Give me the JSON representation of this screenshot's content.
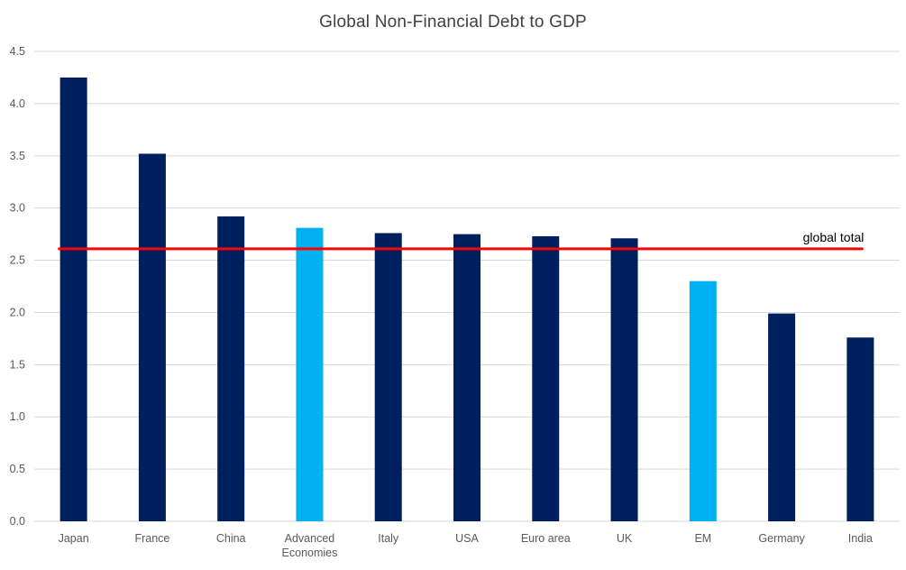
{
  "chart_data": {
    "type": "bar",
    "title": "Global Non-Financial Debt to GDP",
    "xlabel": "",
    "ylabel": "",
    "ylim": [
      0,
      4.5
    ],
    "yticks": [
      "0.0",
      "0.5",
      "1.0",
      "1.5",
      "2.0",
      "2.5",
      "3.0",
      "3.5",
      "4.0",
      "4.5"
    ],
    "grid": true,
    "categories": [
      [
        "Japan"
      ],
      [
        "France"
      ],
      [
        "China"
      ],
      [
        "Advanced",
        "Economies"
      ],
      [
        "Italy"
      ],
      [
        "USA"
      ],
      [
        "Euro area"
      ],
      [
        "UK"
      ],
      [
        "EM"
      ],
      [
        "Germany"
      ],
      [
        "India"
      ]
    ],
    "values": [
      4.25,
      3.52,
      2.92,
      2.81,
      2.76,
      2.75,
      2.73,
      2.71,
      2.3,
      1.99,
      1.76
    ],
    "bar_colors": [
      "#001f5f",
      "#001f5f",
      "#001f5f",
      "#00b0f0",
      "#001f5f",
      "#001f5f",
      "#001f5f",
      "#001f5f",
      "#00b0f0",
      "#001f5f",
      "#001f5f"
    ],
    "reference_line": {
      "label": "global total",
      "value": 2.61,
      "color": "#ff0000"
    },
    "gridline_color": "#d9d9d9",
    "legend": "none"
  }
}
